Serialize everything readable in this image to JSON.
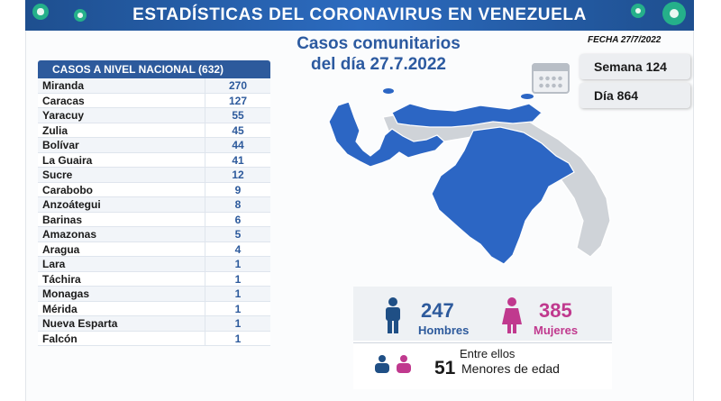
{
  "banner": {
    "title": "ESTADÍSTICAS DEL CORONAVIRUS EN VENEZUELA"
  },
  "subtitle": {
    "line1": "Casos comunitarios",
    "line2": "del día 27.7.2022"
  },
  "fecha": "FECHA 27/7/2022",
  "semana": "Semana 124",
  "dia": "Día 864",
  "table": {
    "header": "CASOS A NIVEL NACIONAL (632)",
    "rows": [
      {
        "state": "Miranda",
        "cases": "270"
      },
      {
        "state": "Caracas",
        "cases": "127"
      },
      {
        "state": "Yaracuy",
        "cases": "55"
      },
      {
        "state": "Zulia",
        "cases": "45"
      },
      {
        "state": "Bolívar",
        "cases": "44"
      },
      {
        "state": "La Guaira",
        "cases": "41"
      },
      {
        "state": "Sucre",
        "cases": "12"
      },
      {
        "state": "Carabobo",
        "cases": "9"
      },
      {
        "state": "Anzoátegui",
        "cases": "8"
      },
      {
        "state": "Barinas",
        "cases": "6"
      },
      {
        "state": "Amazonas",
        "cases": "5"
      },
      {
        "state": "Aragua",
        "cases": "4"
      },
      {
        "state": "Lara",
        "cases": "1"
      },
      {
        "state": "Táchira",
        "cases": "1"
      },
      {
        "state": "Monagas",
        "cases": "1"
      },
      {
        "state": "Mérida",
        "cases": "1"
      },
      {
        "state": "Nueva Esparta",
        "cases": "1"
      },
      {
        "state": "Falcón",
        "cases": "1"
      }
    ]
  },
  "gender": {
    "men_count": "247",
    "men_label": "Hombres",
    "women_count": "385",
    "women_label": "Mujeres"
  },
  "minors": {
    "intro": "Entre ellos",
    "count": "51",
    "label": "Menores de edad"
  },
  "colors": {
    "accent_blue": "#2d5a9c",
    "map_blue": "#2c66c4",
    "map_gray": "#cfd3d8",
    "women_pink": "#c0398e",
    "banner_blue": "#2c6bbf",
    "virus_green": "#25b08a"
  },
  "icons": [
    "virus-icon",
    "calendar-icon",
    "man-icon",
    "woman-icon",
    "children-icon"
  ]
}
